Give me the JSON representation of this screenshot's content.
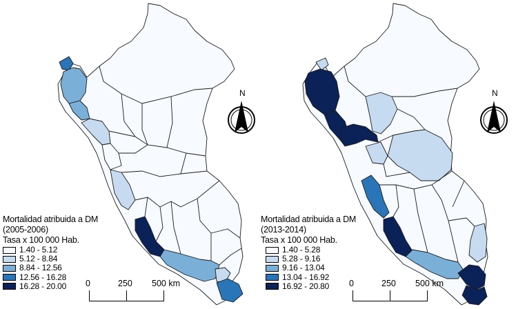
{
  "panels": [
    {
      "legend": {
        "title_line1": "Mortalidad atribuida a DM",
        "title_line2": "(2005-2006)",
        "title_line3": "Tasa x 100 000 Hab.",
        "classes": [
          {
            "label": "1.40 - 5.12",
            "color": "#f7fbff"
          },
          {
            "label": "5.12 - 8.84",
            "color": "#c6dbef"
          },
          {
            "label": "8.84 - 12.56",
            "color": "#7aafd8"
          },
          {
            "label": "12.56 - 16.28",
            "color": "#2a74b8"
          },
          {
            "label": "16.28 - 20.00",
            "color": "#0b2259"
          }
        ]
      },
      "scale": {
        "ticks": [
          "0",
          "250",
          "500 km"
        ]
      },
      "north_label": "N"
    },
    {
      "legend": {
        "title_line1": "Mortalidad atribuida a DM",
        "title_line2": "(2013-2014)",
        "title_line3": "Tasa x 100 000 Hab.",
        "classes": [
          {
            "label": "1.40 - 5.28",
            "color": "#f7fbff"
          },
          {
            "label": "5.28 - 9.16",
            "color": "#c6dbef"
          },
          {
            "label": "9.16 - 13.04",
            "color": "#7aafd8"
          },
          {
            "label": "13.04 - 16.92",
            "color": "#2a74b8"
          },
          {
            "label": "16.92 - 20.80",
            "color": "#0b2259"
          }
        ]
      },
      "scale": {
        "ticks": [
          "0",
          "250",
          "500 km"
        ]
      },
      "north_label": "N"
    }
  ]
}
